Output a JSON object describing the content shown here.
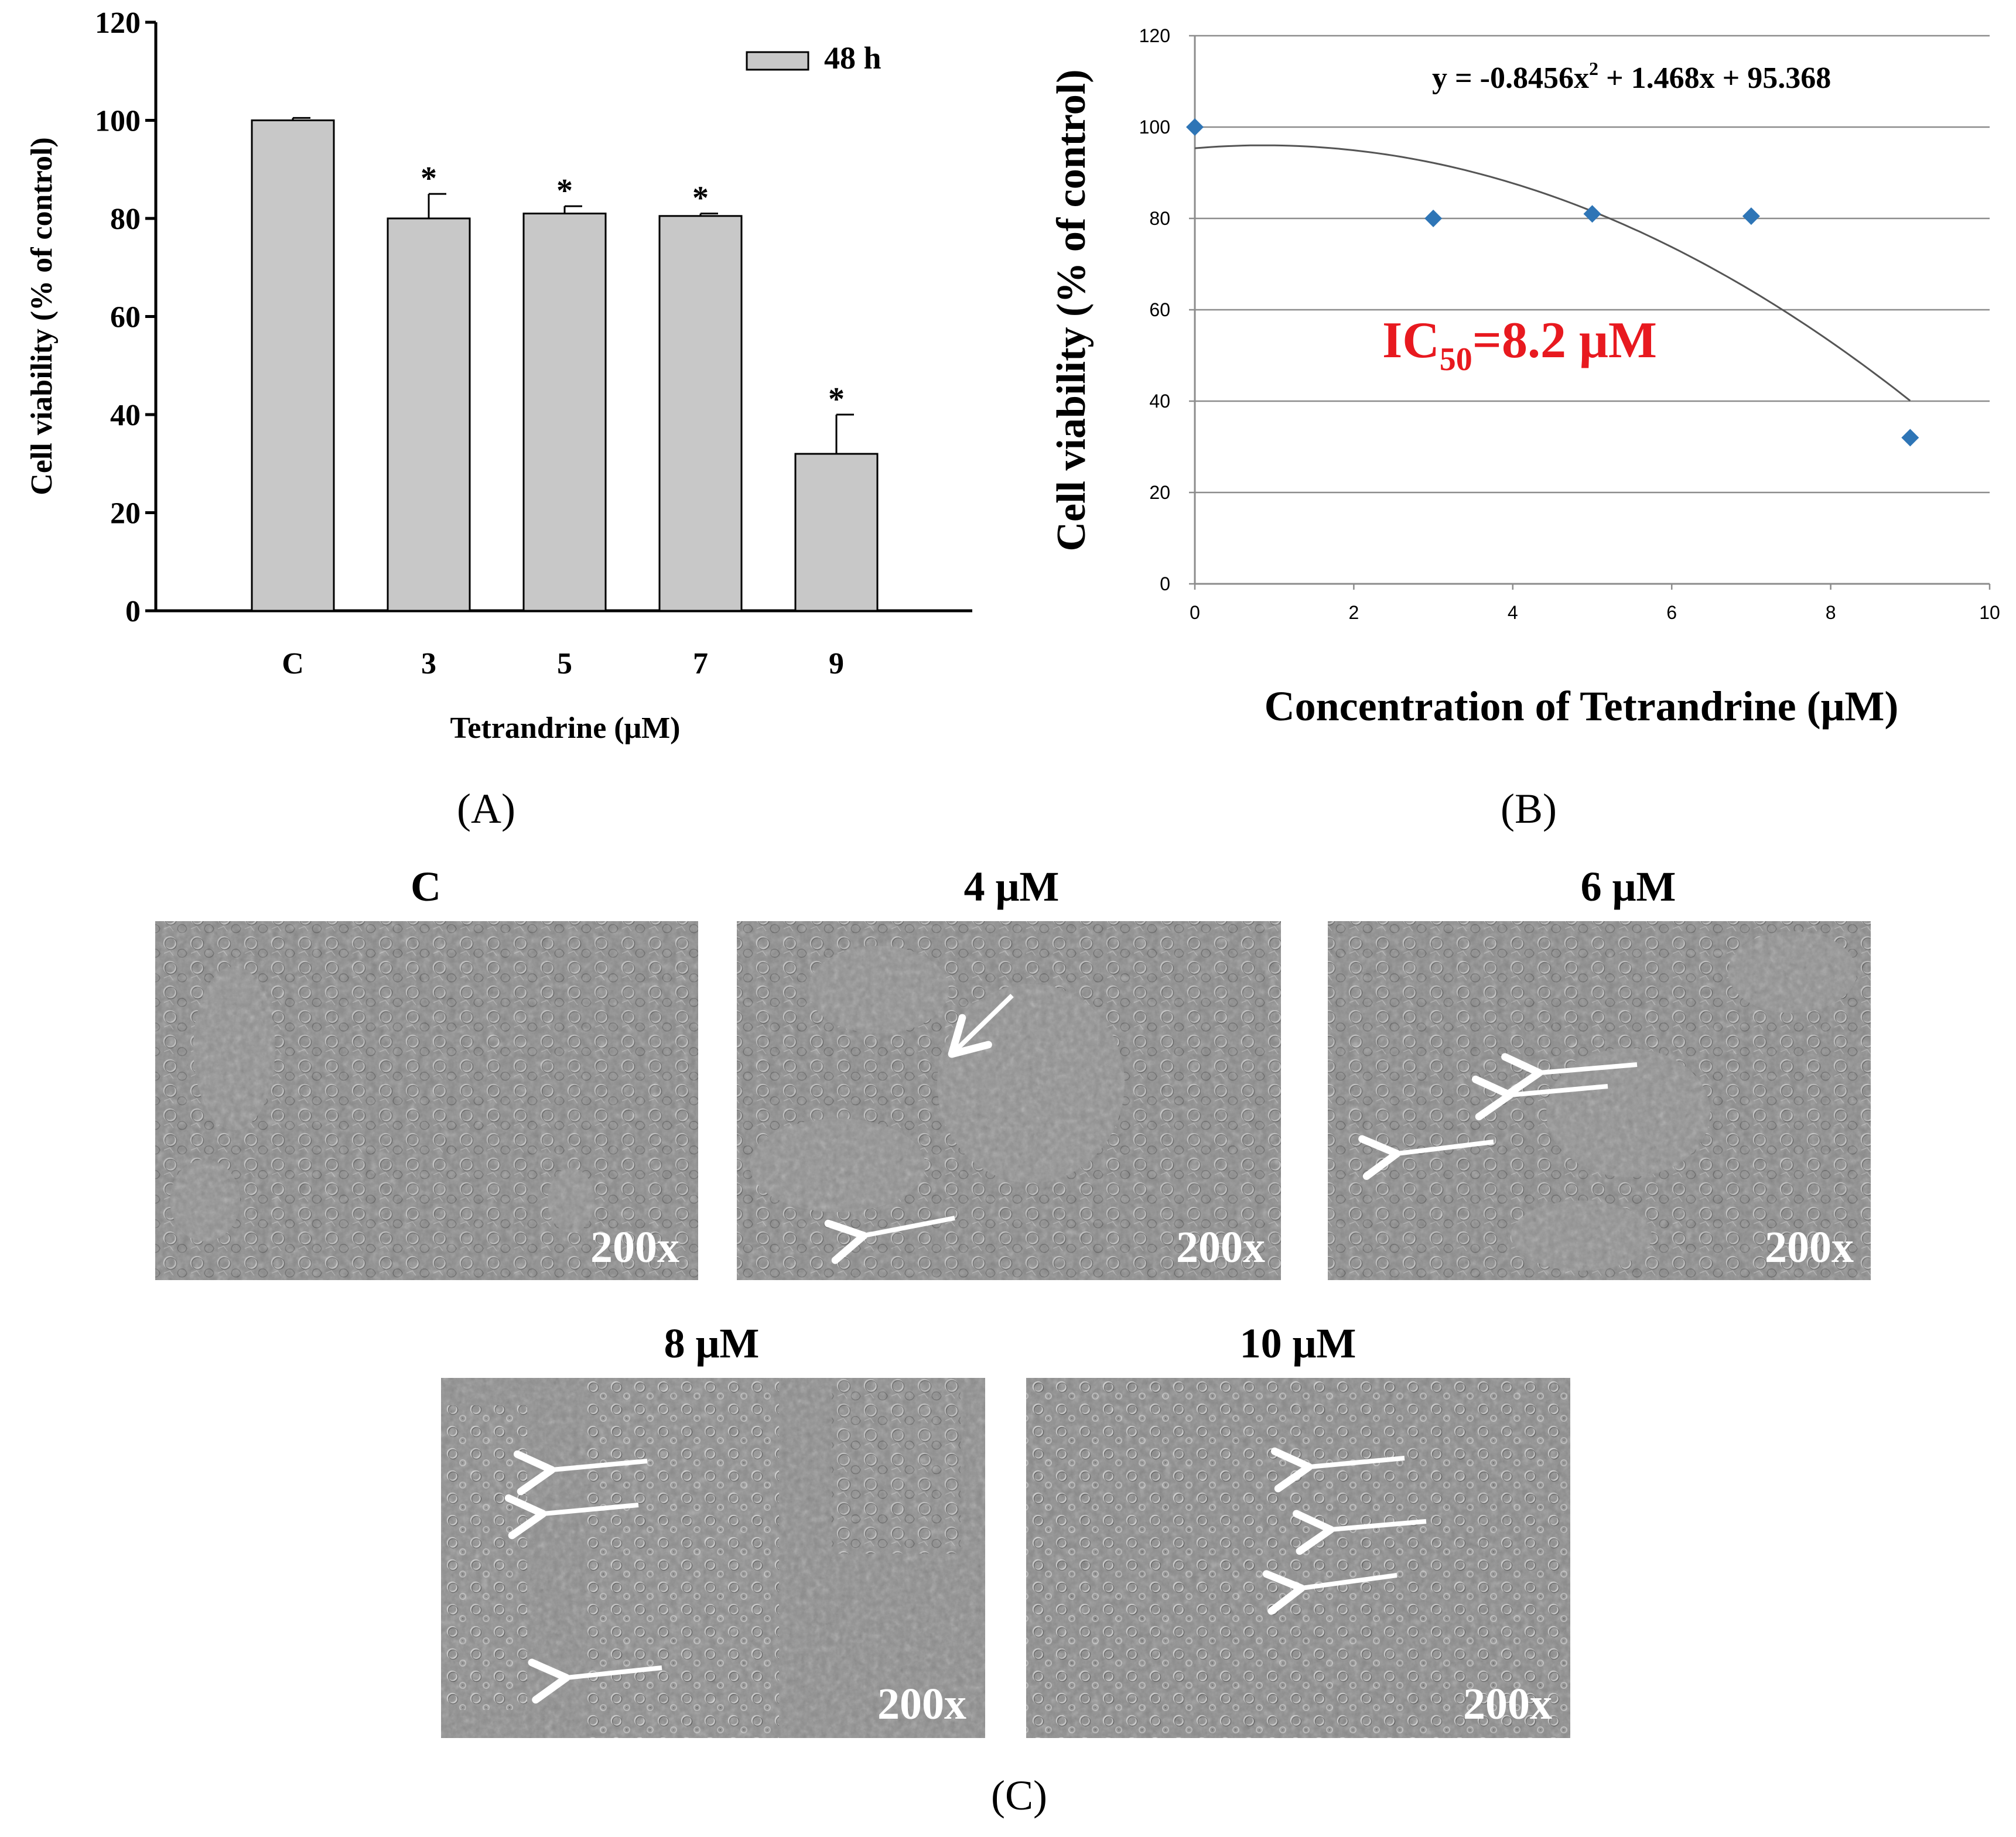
{
  "chart_data": [
    {
      "panel": "A",
      "type": "bar",
      "panel_label": "(A)",
      "categories": [
        "C",
        "3",
        "5",
        "7",
        "9"
      ],
      "series": [
        {
          "name": "48 h",
          "values": [
            100,
            80,
            81,
            80.5,
            32
          ],
          "errors": [
            0.5,
            5,
            1.5,
            0.5,
            8
          ]
        }
      ],
      "significance": [
        "",
        "*",
        "*",
        "*",
        "*"
      ],
      "legend_label": "48 h",
      "xlabel": "Tetrandrine (μM)",
      "ylabel": "Cell viability (% of control)",
      "ylim": [
        0,
        120
      ],
      "yticks": [
        0,
        20,
        40,
        60,
        80,
        100,
        120
      ],
      "bar_color": "#c8c8c8"
    },
    {
      "panel": "B",
      "type": "scatter",
      "panel_label": "(B)",
      "x": [
        0,
        3,
        5,
        7,
        9
      ],
      "y": [
        100,
        80,
        81,
        80.5,
        32
      ],
      "fit": {
        "a": -0.8456,
        "b": 1.468,
        "c": 95.368,
        "x_range": [
          0,
          9
        ]
      },
      "equation_main": "y = -0.8456x",
      "equation_sup": "2",
      "equation_rest": " + 1.468x + 95.368",
      "ic50_prefix": "IC",
      "ic50_sub": "50",
      "ic50_value": "=8.2 μM",
      "xlabel": "Concentration of Tetrandrine (μM)",
      "ylabel": "Cell viability (% of control)",
      "xlim": [
        0,
        10
      ],
      "ylim": [
        0,
        120
      ],
      "xticks": [
        0,
        2,
        4,
        6,
        8,
        10
      ],
      "yticks": [
        0,
        20,
        40,
        60,
        80,
        100,
        120
      ],
      "grid": true,
      "marker_color": "#2e75b6",
      "annotation_color": "#e8191f"
    }
  ],
  "micrographs": {
    "panel_label": "(C)",
    "magnification": "200x",
    "images": [
      {
        "label": "C"
      },
      {
        "label": "4 μM"
      },
      {
        "label": "6 μM"
      },
      {
        "label": "8 μM"
      },
      {
        "label": "10 μM"
      }
    ]
  }
}
